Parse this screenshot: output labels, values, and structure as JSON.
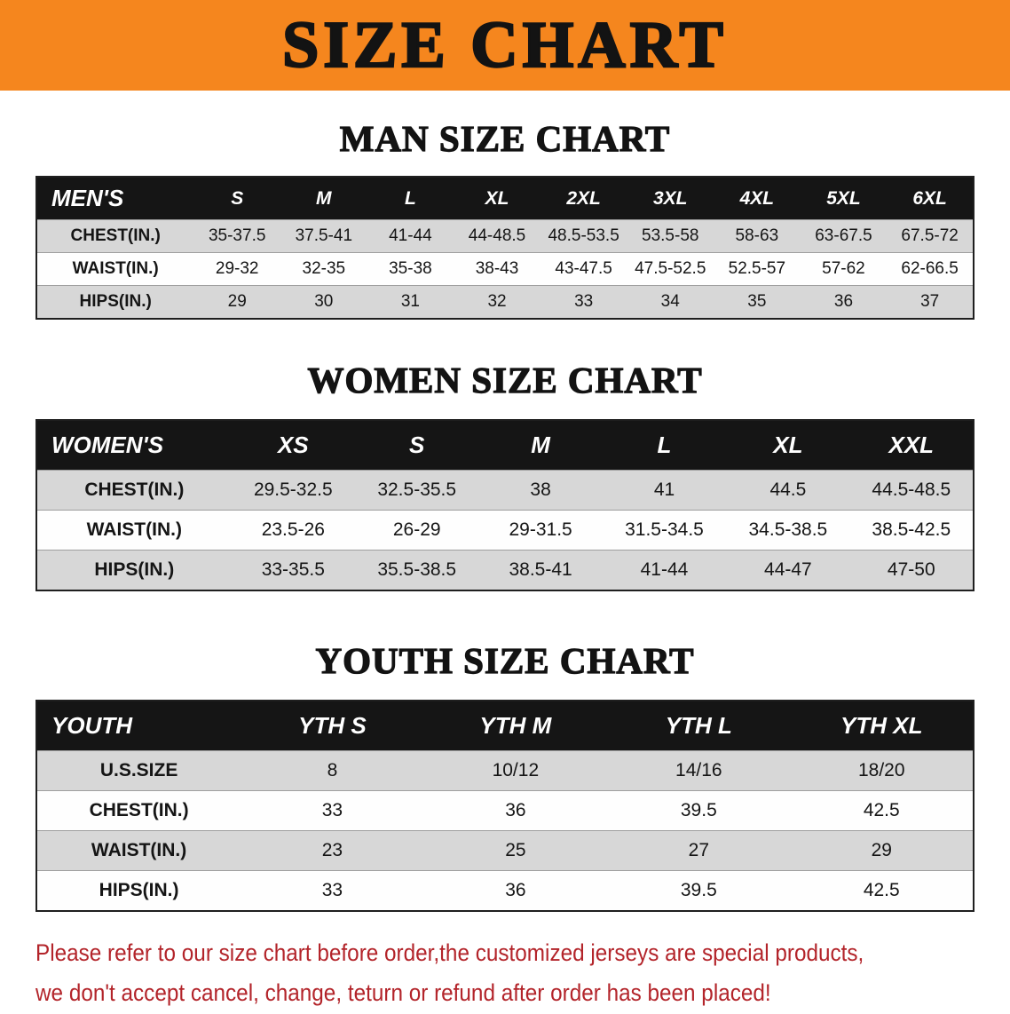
{
  "banner": {
    "title": "SIZE CHART",
    "background_color": "#f5861e"
  },
  "sections": [
    {
      "heading": "MAN SIZE CHART",
      "table": {
        "header": [
          "MEN'S",
          "S",
          "M",
          "L",
          "XL",
          "2XL",
          "3XL",
          "4XL",
          "5XL",
          "6XL"
        ],
        "rows": [
          {
            "label": "CHEST(IN.)",
            "values": [
              "35-37.5",
              "37.5-41",
              "41-44",
              "44-48.5",
              "48.5-53.5",
              "53.5-58",
              "58-63",
              "63-67.5",
              "67.5-72"
            ]
          },
          {
            "label": "WAIST(IN.)",
            "values": [
              "29-32",
              "32-35",
              "35-38",
              "38-43",
              "43-47.5",
              "47.5-52.5",
              "52.5-57",
              "57-62",
              "62-66.5"
            ]
          },
          {
            "label": "HIPS(IN.)",
            "values": [
              "29",
              "30",
              "31",
              "32",
              "33",
              "34",
              "35",
              "36",
              "37"
            ]
          }
        ]
      }
    },
    {
      "heading": "WOMEN SIZE CHART",
      "table": {
        "header": [
          "WOMEN'S",
          "XS",
          "S",
          "M",
          "L",
          "XL",
          "XXL"
        ],
        "rows": [
          {
            "label": "CHEST(IN.)",
            "values": [
              "29.5-32.5",
              "32.5-35.5",
              "38",
              "41",
              "44.5",
              "44.5-48.5"
            ]
          },
          {
            "label": "WAIST(IN.)",
            "values": [
              "23.5-26",
              "26-29",
              "29-31.5",
              "31.5-34.5",
              "34.5-38.5",
              "38.5-42.5"
            ]
          },
          {
            "label": "HIPS(IN.)",
            "values": [
              "33-35.5",
              "35.5-38.5",
              "38.5-41",
              "41-44",
              "44-47",
              "47-50"
            ]
          }
        ]
      }
    },
    {
      "heading": "YOUTH SIZE CHART",
      "table": {
        "header": [
          "YOUTH",
          "YTH S",
          "YTH M",
          "YTH L",
          "YTH XL"
        ],
        "rows": [
          {
            "label": "U.S.SIZE",
            "values": [
              "8",
              "10/12",
              "14/16",
              "18/20"
            ]
          },
          {
            "label": "CHEST(IN.)",
            "values": [
              "33",
              "36",
              "39.5",
              "42.5"
            ]
          },
          {
            "label": "WAIST(IN.)",
            "values": [
              "23",
              "25",
              "27",
              "29"
            ]
          },
          {
            "label": "HIPS(IN.)",
            "values": [
              "33",
              "36",
              "39.5",
              "42.5"
            ]
          }
        ]
      }
    }
  ],
  "footer": {
    "line1": "Please refer to our size chart before order,the customized jerseys are special products,",
    "line2": "we don't accept cancel, change, teturn or refund after order has been placed!",
    "text_color": "#b3242a"
  }
}
